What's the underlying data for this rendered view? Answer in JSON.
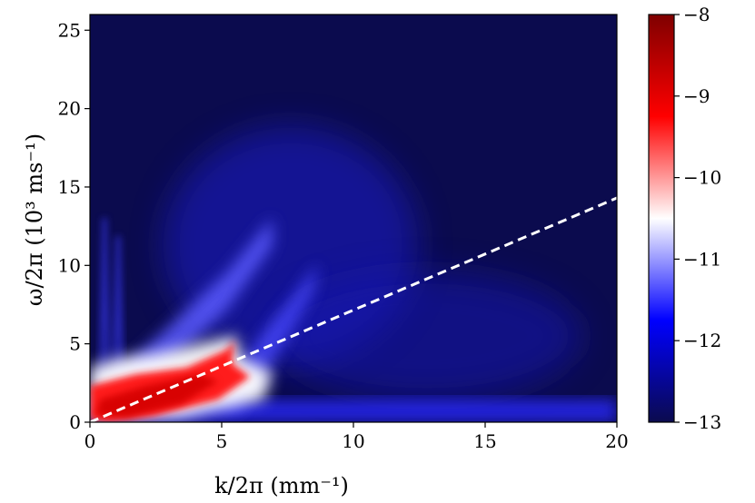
{
  "chart_data": {
    "type": "heatmap",
    "title": "",
    "xlabel": "k/2π (mm⁻¹)",
    "ylabel": "ω/2π (10³ ms⁻¹)",
    "xlim": [
      0,
      20
    ],
    "ylim": [
      0,
      26
    ],
    "xticks": [
      0,
      5,
      10,
      15,
      20
    ],
    "xtick_labels": [
      "0",
      "5",
      "10",
      "15",
      "20"
    ],
    "yticks": [
      0,
      5,
      10,
      15,
      20,
      25
    ],
    "ytick_labels": [
      "0",
      "5",
      "10",
      "15",
      "20",
      "25"
    ],
    "colorbar": {
      "min": -13,
      "max": -8,
      "ticks": [
        -8,
        -9,
        -10,
        -11,
        -12,
        -13
      ],
      "tick_labels": [
        "−8",
        "−9",
        "−10",
        "−11",
        "−12",
        "−13"
      ],
      "colormap": [
        "#0b0b4e",
        "#0000ff",
        "#ffffff",
        "#ff0000",
        "#7f0000"
      ]
    },
    "background_value": -13,
    "features": [
      {
        "name": "low-frequency peak",
        "x_range": [
          0,
          5.5
        ],
        "y_range": [
          0,
          5
        ],
        "peak_value": -9.3
      },
      {
        "name": "upper branch",
        "x_range": [
          2,
          7
        ],
        "y_range": [
          3,
          11
        ],
        "peak_value": -11
      },
      {
        "name": "second branch",
        "x_range": [
          5,
          9
        ],
        "y_range": [
          2,
          10
        ],
        "peak_value": -11.3
      },
      {
        "name": "broad plume",
        "x_range": [
          3,
          12
        ],
        "y_range": [
          2,
          18
        ],
        "peak_value": -12.2
      },
      {
        "name": "low-frequency floor",
        "x_range": [
          0,
          20
        ],
        "y_range": [
          0,
          1
        ],
        "peak_value": -11.5
      }
    ],
    "reference_line": {
      "style": "dashed",
      "color": "#ffffff",
      "x": [
        0,
        20
      ],
      "y": [
        0,
        14.3
      ]
    }
  }
}
